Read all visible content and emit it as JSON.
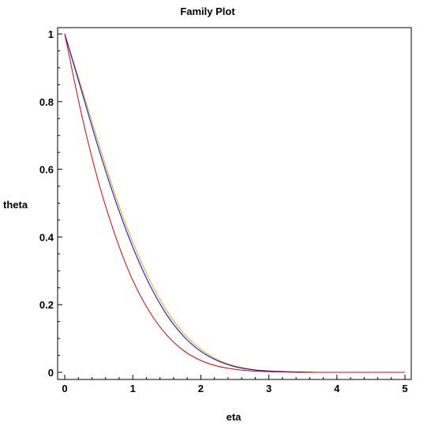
{
  "chart_data": {
    "type": "line",
    "title": "Family Plot",
    "xlabel": "eta",
    "ylabel": "theta",
    "xlim": [
      0,
      5
    ],
    "ylim": [
      0,
      1
    ],
    "xticks": [
      0,
      1,
      2,
      3,
      4,
      5
    ],
    "yticks": [
      0,
      0.2,
      0.4,
      0.6,
      0.8,
      1
    ],
    "grid": false,
    "legend": "none",
    "x": [
      0,
      0.25,
      0.5,
      0.75,
      1,
      1.25,
      1.5,
      1.75,
      2,
      2.25,
      2.5,
      2.75,
      3,
      3.25,
      3.5,
      3.75,
      4,
      4.25,
      4.5,
      4.75,
      5
    ],
    "series": [
      {
        "color": "#e0a020",
        "values": [
          1,
          0.84,
          0.675,
          0.52,
          0.385,
          0.272,
          0.182,
          0.115,
          0.068,
          0.037,
          0.019,
          0.009,
          0.004,
          0.002,
          0.001,
          0,
          0,
          0,
          0,
          0,
          0
        ]
      },
      {
        "color": "#0000cc",
        "values": [
          1,
          0.83,
          0.66,
          0.505,
          0.37,
          0.258,
          0.17,
          0.106,
          0.062,
          0.034,
          0.017,
          0.008,
          0.004,
          0.002,
          0.001,
          0,
          0,
          0,
          0,
          0,
          0
        ]
      },
      {
        "color": "#dd0000",
        "values": [
          1,
          0.76,
          0.56,
          0.4,
          0.272,
          0.178,
          0.11,
          0.064,
          0.035,
          0.018,
          0.009,
          0.004,
          0.002,
          0.001,
          0,
          0,
          0,
          0,
          0,
          0,
          0
        ]
      }
    ]
  }
}
